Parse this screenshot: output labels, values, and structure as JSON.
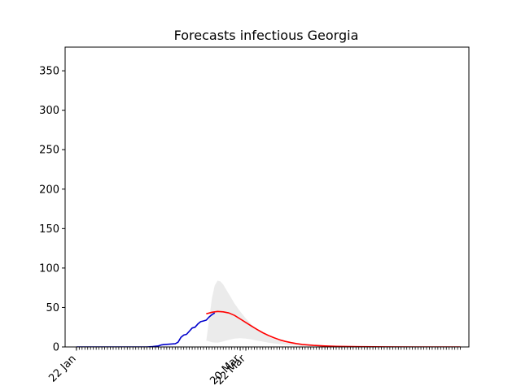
{
  "chart_data": {
    "type": "line",
    "title": "Forecasts infectious Georgia",
    "xlabel": "",
    "ylabel": "",
    "ylim": [
      0,
      380
    ],
    "yticks": [
      0,
      50,
      100,
      150,
      200,
      250,
      300,
      350
    ],
    "x_range_days": [
      -4,
      139
    ],
    "x_tick_labels": [
      {
        "day": 0,
        "label": "22 Jan"
      },
      {
        "day": 58,
        "label": "20 Mar"
      },
      {
        "day": 60,
        "label": "22 Mar"
      }
    ],
    "minor_tick_days": {
      "start": 0,
      "end": 136,
      "step": 1
    },
    "series": [
      {
        "role": "observed",
        "color": "#0000cc",
        "points": [
          [
            0,
            0
          ],
          [
            25,
            0
          ],
          [
            27,
            0.5
          ],
          [
            29,
            1.2
          ],
          [
            30,
            2.5
          ],
          [
            31,
            3
          ],
          [
            33,
            3.5
          ],
          [
            35,
            4
          ],
          [
            36,
            6
          ],
          [
            37,
            12
          ],
          [
            38,
            15
          ],
          [
            39,
            16
          ],
          [
            40,
            20
          ],
          [
            41,
            24
          ],
          [
            42,
            25
          ],
          [
            43,
            29
          ],
          [
            44,
            32
          ],
          [
            45,
            33
          ],
          [
            46,
            34
          ],
          [
            47,
            38
          ],
          [
            48,
            41
          ],
          [
            49,
            43
          ]
        ]
      },
      {
        "role": "forecast",
        "color": "#ff0000",
        "points": [
          [
            46,
            42
          ],
          [
            48,
            44
          ],
          [
            50,
            45
          ],
          [
            52,
            44.5
          ],
          [
            54,
            43
          ],
          [
            56,
            40
          ],
          [
            58,
            35.5
          ],
          [
            60,
            31
          ],
          [
            62,
            26.5
          ],
          [
            64,
            22
          ],
          [
            66,
            18
          ],
          [
            68,
            14.5
          ],
          [
            70,
            11.5
          ],
          [
            72,
            9
          ],
          [
            74,
            7
          ],
          [
            76,
            5.5
          ],
          [
            78,
            4.2
          ],
          [
            80,
            3.2
          ],
          [
            84,
            2
          ],
          [
            88,
            1.2
          ],
          [
            92,
            0.7
          ],
          [
            100,
            0.3
          ],
          [
            110,
            0.1
          ],
          [
            120,
            0.05
          ],
          [
            136,
            0
          ]
        ]
      },
      {
        "role": "forecast-interval",
        "color": "#ebebeb",
        "upper": [
          [
            46,
            8
          ],
          [
            47,
            35
          ],
          [
            48,
            62
          ],
          [
            49,
            78
          ],
          [
            50,
            84
          ],
          [
            51,
            83
          ],
          [
            52,
            79
          ],
          [
            54,
            67
          ],
          [
            56,
            55
          ],
          [
            58,
            45
          ],
          [
            60,
            36
          ],
          [
            62,
            28.5
          ],
          [
            64,
            22
          ],
          [
            66,
            17
          ],
          [
            68,
            13
          ],
          [
            70,
            10
          ],
          [
            72,
            7.5
          ],
          [
            74,
            5.8
          ],
          [
            76,
            4.4
          ],
          [
            80,
            2.6
          ],
          [
            85,
            1.3
          ],
          [
            90,
            0.7
          ],
          [
            100,
            0.2
          ],
          [
            136,
            0
          ]
        ],
        "lower": [
          [
            46,
            8
          ],
          [
            48,
            6
          ],
          [
            50,
            5.5
          ],
          [
            52,
            7
          ],
          [
            54,
            9
          ],
          [
            56,
            10.5
          ],
          [
            58,
            11
          ],
          [
            60,
            10.5
          ],
          [
            62,
            9.5
          ],
          [
            64,
            8
          ],
          [
            66,
            6.8
          ],
          [
            68,
            5.5
          ],
          [
            70,
            4.5
          ],
          [
            72,
            3.6
          ],
          [
            74,
            2.8
          ],
          [
            76,
            2.2
          ],
          [
            80,
            1.3
          ],
          [
            85,
            0.7
          ],
          [
            90,
            0.4
          ],
          [
            100,
            0.1
          ],
          [
            136,
            0
          ]
        ]
      }
    ]
  }
}
